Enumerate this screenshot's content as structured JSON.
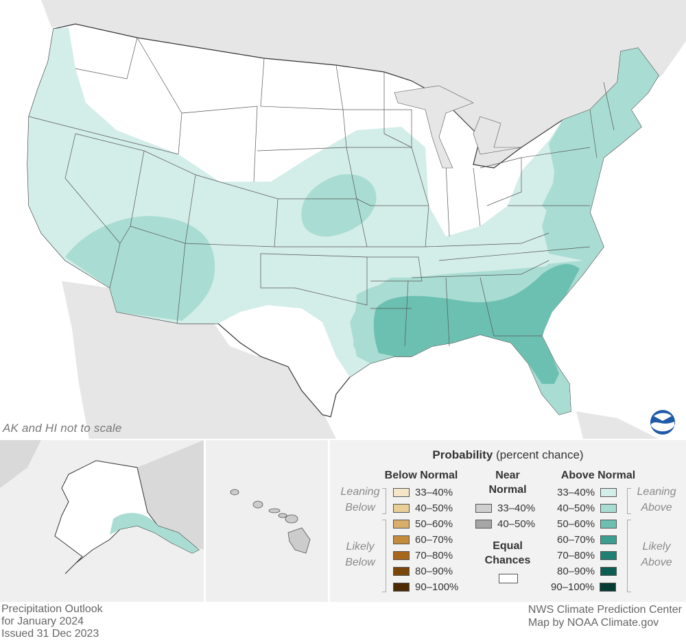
{
  "colors": {
    "land_outside": "#e6e6e6",
    "equal_chances": "#ffffff",
    "leaning_above_33_40": "#d3ede8",
    "leaning_above_40_50": "#a9dcd2",
    "likely_above_50_60": "#6cc0b1",
    "likely_above_60_70": "#3b9e90",
    "likely_above_70_80": "#1e7f72",
    "likely_above_80_90": "#0c5e52",
    "likely_above_90_100": "#063b33",
    "below_33_40": "#f4e6c6",
    "below_40_50": "#e8cf98",
    "below_50_60": "#d8ae6a",
    "below_60_70": "#c48b3d",
    "below_70_80": "#a6661c",
    "below_80_90": "#7b4609",
    "below_90_100": "#4b2a04",
    "near_33_40": "#cfcfcf",
    "near_40_50": "#a6a6a6"
  },
  "map": {
    "scale_note": "AK and HI not to scale",
    "logo_icon": "noaa-logo-icon"
  },
  "legend": {
    "title_bold": "Probability",
    "title_rest": " (percent chance)",
    "below_normal": {
      "heading": "Below Normal",
      "leaning_label": "Leaning Below",
      "likely_label": "Likely Below",
      "items": [
        "33–40%",
        "40–50%",
        "50–60%",
        "60–70%",
        "70–80%",
        "80–90%",
        "90–100%"
      ]
    },
    "near_normal": {
      "heading": "Near Normal",
      "items": [
        "33–40%",
        "40–50%"
      ]
    },
    "equal_chances": {
      "heading": "Equal Chances"
    },
    "above_normal": {
      "heading": "Above Normal",
      "leaning_label": "Leaning Above",
      "likely_label": "Likely Above",
      "items": [
        "33–40%",
        "40–50%",
        "50–60%",
        "60–70%",
        "70–80%",
        "80–90%",
        "90–100%"
      ]
    }
  },
  "footer": {
    "left": [
      "Precipitation Outlook",
      "for January 2024",
      "Issued 31 Dec 2023"
    ],
    "right": [
      "NWS Climate Prediction Center",
      "Map by NOAA Climate.gov"
    ]
  }
}
